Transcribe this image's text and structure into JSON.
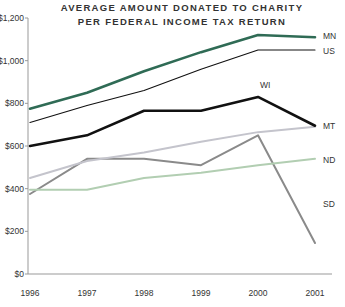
{
  "chart_data": {
    "type": "line",
    "title": [
      "AVERAGE AMOUNT DONATED TO CHARITY",
      "PER FEDERAL INCOME TAX RETURN"
    ],
    "categories": [
      "1996",
      "1997",
      "1998",
      "1999",
      "2000",
      "2001"
    ],
    "ylim": [
      0,
      1200
    ],
    "yticks": [
      {
        "value": 0,
        "label": "$0"
      },
      {
        "value": 200,
        "label": "$200"
      },
      {
        "value": 400,
        "label": "$400"
      },
      {
        "value": 600,
        "label": "$600"
      },
      {
        "value": 800,
        "label": "$800"
      },
      {
        "value": 1000,
        "label": "$1,000"
      },
      {
        "value": 1200,
        "label": "$1,200"
      }
    ],
    "grid": false,
    "series": [
      {
        "name": "MN",
        "color": "#2f6b55",
        "line_style": "thick",
        "values": [
          775,
          850,
          950,
          1040,
          1120,
          1110
        ]
      },
      {
        "name": "US",
        "color": "#111111",
        "line_style": "thin",
        "values": [
          710,
          790,
          860,
          960,
          1050,
          1050
        ]
      },
      {
        "name": "WI",
        "color": "#111111",
        "line_style": "thick",
        "values": [
          600,
          650,
          765,
          765,
          830,
          695
        ]
      },
      {
        "name": "MT",
        "color": "#c4c4cc",
        "line_style": "medium",
        "values": [
          450,
          530,
          570,
          620,
          665,
          690
        ]
      },
      {
        "name": "ND",
        "color": "#b2ceb2",
        "line_style": "medium",
        "values": [
          395,
          395,
          450,
          475,
          510,
          540
        ]
      },
      {
        "name": "SD",
        "color": "#8a8a8a",
        "line_style": "medium",
        "values": [
          375,
          540,
          540,
          510,
          650,
          145
        ]
      }
    ]
  }
}
